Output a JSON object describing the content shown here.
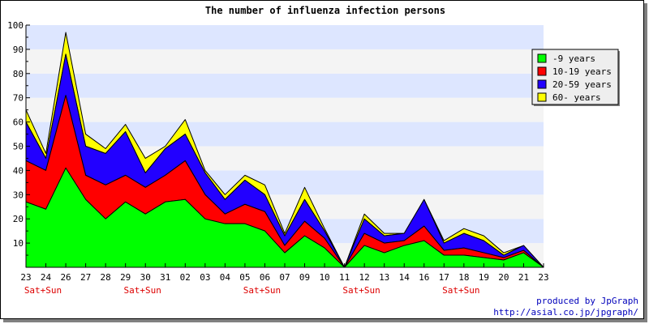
{
  "chart_data": {
    "type": "area",
    "stacked": true,
    "title": "The number of influenza infection persons",
    "xlabel": "",
    "ylabel": "",
    "ylim": [
      0,
      100
    ],
    "yticks": [
      10,
      20,
      30,
      40,
      50,
      60,
      70,
      80,
      90,
      100
    ],
    "x_labels": [
      "23",
      "24",
      "26",
      "27",
      "28",
      "29",
      "30",
      "31",
      "02",
      "03",
      "04",
      "05",
      "06",
      "07",
      "09",
      "10",
      "11",
      "12",
      "13",
      "14",
      "16",
      "17",
      "18",
      "19",
      "20",
      "21",
      "23"
    ],
    "weekend_labels": [
      {
        "index": 0,
        "text": "Sat+Sun"
      },
      {
        "index": 5,
        "text": "Sat+Sun"
      },
      {
        "index": 11,
        "text": "Sat+Sun"
      },
      {
        "index": 16,
        "text": "Sat+Sun"
      },
      {
        "index": 21,
        "text": "Sat+Sun"
      }
    ],
    "series": [
      {
        "name": "-9 years",
        "color": "#00ff00",
        "values": [
          27,
          24,
          41,
          28,
          20,
          27,
          22,
          27,
          28,
          20,
          18,
          18,
          15,
          6,
          13,
          8,
          0,
          9,
          6,
          9,
          11,
          5,
          5,
          4,
          3,
          6,
          0
        ]
      },
      {
        "name": "10-19 years",
        "color": "#ff0000",
        "values": [
          17,
          16,
          30,
          10,
          14,
          11,
          11,
          11,
          16,
          10,
          4,
          8,
          8,
          3,
          6,
          4,
          0,
          5,
          4,
          2,
          6,
          2,
          3,
          2,
          1,
          1,
          0
        ]
      },
      {
        "name": "20-59 years",
        "color": "#2200ff",
        "values": [
          16,
          5,
          17,
          12,
          13,
          18,
          6,
          11,
          11,
          9,
          6,
          10,
          7,
          4,
          9,
          3,
          0,
          6,
          3,
          3,
          11,
          3,
          6,
          5,
          1,
          2,
          0
        ]
      },
      {
        "name": "60- years",
        "color": "#ffff00",
        "values": [
          5,
          2,
          9,
          5,
          2,
          3,
          6,
          1,
          6,
          1,
          2,
          2,
          4,
          1,
          5,
          1,
          0,
          2,
          1,
          0,
          0,
          1,
          2,
          2,
          1,
          0,
          0
        ]
      }
    ],
    "grid_bands": [
      "#dde6ff",
      "#f4f4f4"
    ],
    "legend_position": "top-right"
  },
  "credits": {
    "line1": "produced by JpGraph",
    "line2": "http://asial.co.jp/jpgraph/"
  }
}
